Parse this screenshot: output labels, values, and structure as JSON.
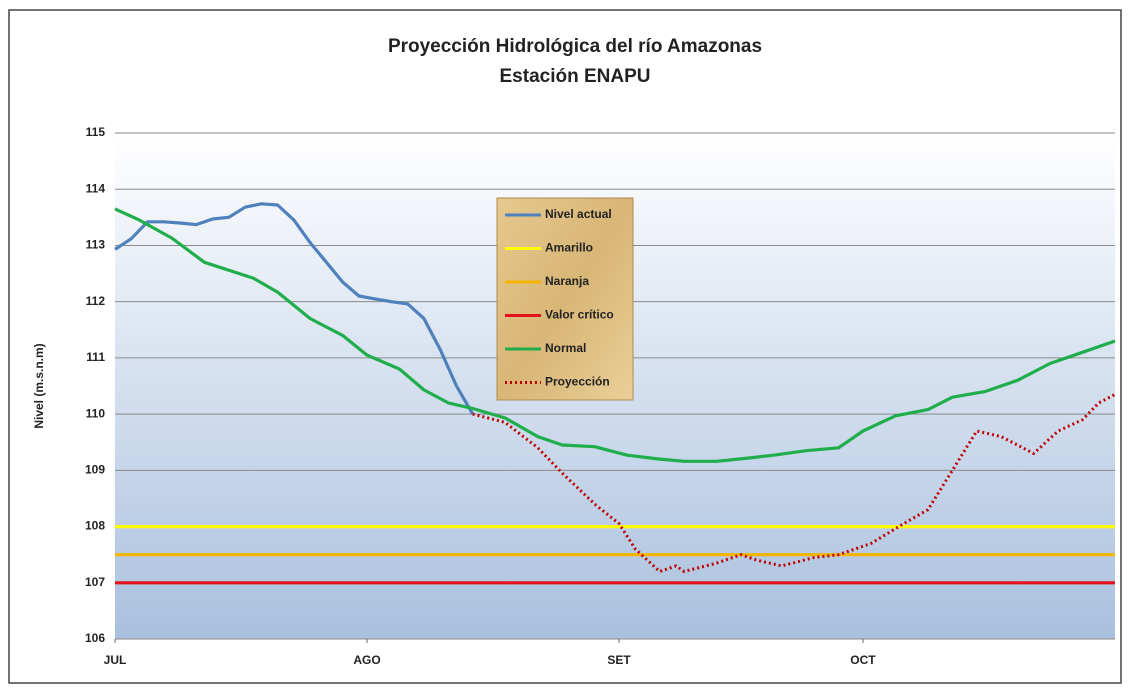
{
  "chart_data": {
    "type": "line",
    "title": "Proyección Hidrológica del río Amazonas",
    "subtitle": "Estación ENAPU",
    "y_label": "Nivel (m.s.n.m)",
    "xlim": [
      0,
      123
    ],
    "xticks": [
      {
        "value": 0,
        "label": "JUL"
      },
      {
        "value": 31,
        "label": "AGO"
      },
      {
        "value": 62,
        "label": "SET"
      },
      {
        "value": 92,
        "label": "OCT"
      }
    ],
    "ylim": [
      106,
      115
    ],
    "yticks": [
      106,
      107,
      108,
      109,
      110,
      111,
      112,
      113,
      114,
      115
    ],
    "grid": true,
    "legend": "inside-center",
    "series": [
      {
        "name": "Nivel actual",
        "color": "#4f81bd",
        "style": "solid",
        "x": [
          0,
          2,
          4,
          6,
          8,
          10,
          12,
          14,
          16,
          18,
          20,
          22,
          24,
          26,
          28,
          30,
          32,
          34,
          36,
          38,
          40,
          42,
          44
        ],
        "values": [
          112.93,
          113.12,
          113.42,
          113.42,
          113.4,
          113.37,
          113.47,
          113.5,
          113.68,
          113.74,
          113.72,
          113.45,
          113.05,
          112.7,
          112.35,
          112.1,
          112.05,
          112.0,
          111.96,
          111.7,
          111.15,
          110.5,
          110.0
        ]
      },
      {
        "name": "Amarillo",
        "color": "#ffff00",
        "style": "solid",
        "x": [
          0,
          123
        ],
        "values": [
          108,
          108
        ]
      },
      {
        "name": "Naranja",
        "color": "#f4b400",
        "style": "solid",
        "x": [
          0,
          123
        ],
        "values": [
          107.5,
          107.5
        ]
      },
      {
        "name": "Valor crítico",
        "color": "#e3121b",
        "style": "solid",
        "x": [
          0,
          123
        ],
        "values": [
          107,
          107
        ]
      },
      {
        "name": "Normal",
        "color": "#1fae4b",
        "style": "solid",
        "x": [
          0,
          3,
          7,
          11,
          17,
          20,
          24,
          28,
          31,
          35,
          38,
          41,
          44,
          48,
          52,
          55,
          59,
          63,
          67,
          70,
          74,
          78,
          81,
          85,
          89,
          92,
          96,
          100,
          103,
          107,
          111,
          115,
          119,
          123
        ],
        "values": [
          113.65,
          113.45,
          113.13,
          112.7,
          112.42,
          112.17,
          111.7,
          111.4,
          111.05,
          110.8,
          110.43,
          110.2,
          110.1,
          109.93,
          109.6,
          109.45,
          109.42,
          109.27,
          109.2,
          109.16,
          109.16,
          109.22,
          109.27,
          109.35,
          109.4,
          109.7,
          109.97,
          110.08,
          110.3,
          110.4,
          110.6,
          110.9,
          111.1,
          111.3
        ]
      },
      {
        "name": "Proyección",
        "color": "#c00000",
        "style": "dotted",
        "x": [
          44,
          48,
          52,
          55,
          59,
          62,
          64,
          67,
          69,
          70,
          74,
          77,
          79,
          82,
          86,
          89,
          93,
          97,
          100,
          103,
          106,
          109,
          113,
          116,
          119,
          121,
          123
        ],
        "values": [
          110.0,
          109.85,
          109.4,
          108.95,
          108.4,
          108.05,
          107.6,
          107.2,
          107.3,
          107.2,
          107.35,
          107.5,
          107.4,
          107.3,
          107.45,
          107.5,
          107.7,
          108.05,
          108.3,
          109.0,
          109.7,
          109.6,
          109.3,
          109.7,
          109.9,
          110.2,
          110.35
        ]
      }
    ]
  }
}
